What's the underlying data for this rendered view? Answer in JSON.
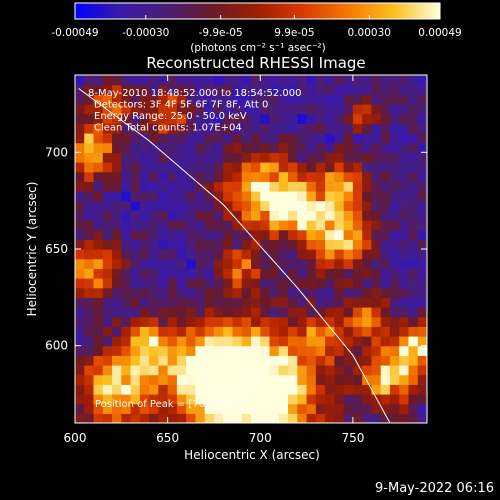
{
  "chart_data": {
    "type": "heatmap",
    "title": "Reconstructed RHESSI Image",
    "xlabel": "Heliocentric X (arcsec)",
    "ylabel": "Heliocentric Y (arcsec)",
    "xlim": [
      600,
      790
    ],
    "ylim": [
      560,
      740
    ],
    "x_ticks": [
      600,
      650,
      700,
      750
    ],
    "x_tick_labels": [
      "600",
      "650",
      "700",
      "750"
    ],
    "y_ticks": [
      600,
      650,
      700
    ],
    "y_tick_labels": [
      "600",
      "650",
      "700"
    ],
    "grid": false,
    "colorbar": {
      "range": [
        -0.00049,
        0.00049
      ],
      "tick_values": [
        -0.00049,
        -0.0003,
        -9.9e-05,
        9.9e-05,
        0.0003,
        0.00049
      ],
      "tick_labels": [
        "-0.00049",
        "-0.00030",
        "-9.9e-05",
        "9.9e-05",
        "0.00030",
        "0.00049"
      ],
      "units_label": "(photons cm⁻² s⁻¹ asec⁻²)",
      "colormap": [
        "#0000ff",
        "#3a1aa8",
        "#4a1e78",
        "#6a1a2a",
        "#a01e00",
        "#d83a00",
        "#f47a00",
        "#fbc020",
        "#ffffe0"
      ]
    },
    "limb_curve": [
      [
        602,
        733
      ],
      [
        640,
        706
      ],
      [
        680,
        673
      ],
      [
        720,
        630
      ],
      [
        750,
        595
      ],
      [
        770,
        560
      ]
    ],
    "info_lines": [
      "8-May-2010 18:48:52.000 to 18:54:52.000",
      "Detectors: 3F 4F 5F 6F 7F 8F, Att 0",
      "Energy Range: 25.0 - 50.0 keV",
      "Clean    Total counts: 1.07E+04"
    ],
    "peak_label": "Position of Peak = [705,578]",
    "peak": [
      705,
      578
    ],
    "hot_spots": [
      {
        "x": 700,
        "y": 578,
        "r": 22,
        "v": 1.0
      },
      {
        "x": 672,
        "y": 585,
        "r": 16,
        "v": 0.8
      },
      {
        "x": 622,
        "y": 578,
        "r": 14,
        "v": 0.75
      },
      {
        "x": 610,
        "y": 640,
        "r": 10,
        "v": 0.6
      },
      {
        "x": 608,
        "y": 700,
        "r": 10,
        "v": 0.65
      },
      {
        "x": 700,
        "y": 680,
        "r": 14,
        "v": 0.75
      },
      {
        "x": 720,
        "y": 672,
        "r": 10,
        "v": 0.65
      },
      {
        "x": 742,
        "y": 655,
        "r": 12,
        "v": 0.7
      },
      {
        "x": 745,
        "y": 683,
        "r": 10,
        "v": 0.55
      },
      {
        "x": 770,
        "y": 585,
        "r": 12,
        "v": 0.65
      },
      {
        "x": 785,
        "y": 600,
        "r": 8,
        "v": 0.6
      },
      {
        "x": 758,
        "y": 615,
        "r": 8,
        "v": 0.5
      },
      {
        "x": 735,
        "y": 605,
        "r": 8,
        "v": 0.45
      },
      {
        "x": 650,
        "y": 720,
        "r": 8,
        "v": 0.5
      },
      {
        "x": 620,
        "y": 725,
        "r": 8,
        "v": 0.55
      },
      {
        "x": 640,
        "y": 600,
        "r": 10,
        "v": 0.6
      },
      {
        "x": 755,
        "y": 720,
        "r": 6,
        "v": 0.4
      },
      {
        "x": 690,
        "y": 640,
        "r": 8,
        "v": 0.45
      }
    ]
  },
  "timestamp": "9-May-2022 06:16"
}
